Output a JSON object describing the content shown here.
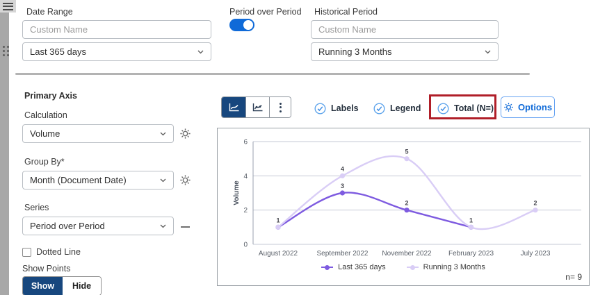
{
  "top_bar": {
    "date_range": {
      "label": "Date Range",
      "custom_name_placeholder": "Custom Name",
      "selected_option": "Last 365 days"
    },
    "period_over_period": {
      "label": "Period over Period",
      "enabled": true
    },
    "historical_period": {
      "label": "Historical Period",
      "custom_name_placeholder": "Custom Name",
      "selected_option": "Running 3 Months"
    }
  },
  "primary_axis_panel": {
    "title": "Primary Axis",
    "calculation_label": "Calculation",
    "calculation_value": "Volume",
    "group_by_label": "Group By*",
    "group_by_value": "Month (Document Date)",
    "series_label": "Series",
    "series_value": "Period over Period",
    "dotted_line_label": "Dotted Line",
    "show_points_label": "Show Points",
    "show_button": "Show",
    "hide_button": "Hide",
    "active_points_mode": "Show"
  },
  "chart_toolbar": {
    "labels_toggle": "Labels",
    "legend_toggle": "Legend",
    "total_toggle": "Total (N=)",
    "options_button": "Options",
    "total_highlight_color": "#b01e28",
    "accent_blue": "#0f6ad8",
    "active_segment_color": "#17477e"
  },
  "chart_data": {
    "type": "line",
    "categories": [
      "August 2022",
      "September 2022",
      "November 2022",
      "February 2023",
      "July 2023"
    ],
    "series": [
      {
        "name": "Last 365 days",
        "color": "#7e5be0",
        "values": [
          1,
          3,
          2,
          1,
          null
        ]
      },
      {
        "name": "Running 3 Months",
        "color": "#d9cdf6",
        "values": [
          1,
          4,
          5,
          1,
          2
        ]
      }
    ],
    "ylabel": "Volume",
    "yticks": [
      0,
      2,
      4,
      6
    ],
    "ylim": [
      0,
      6
    ],
    "grid": true,
    "legend_position": "bottom",
    "n_label": "n= 9"
  }
}
